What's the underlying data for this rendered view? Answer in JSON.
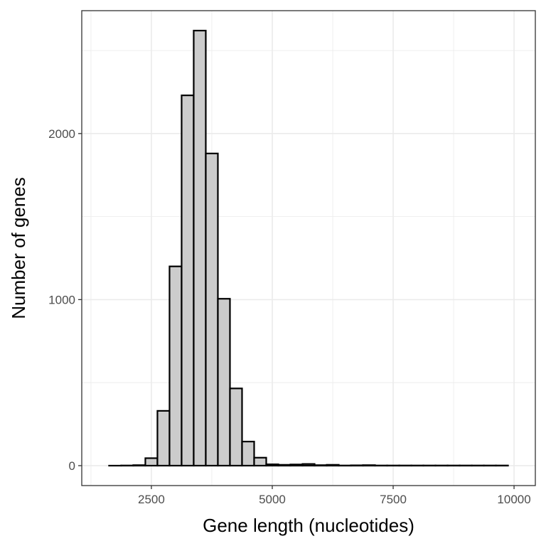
{
  "chart_data": {
    "type": "bar",
    "xlabel": "Gene length (nucleotides)",
    "ylabel": "Number of genes",
    "xlim": [
      1060,
      10440
    ],
    "ylim": [
      -120,
      2740
    ],
    "grid": true,
    "x_ticks": [
      2500,
      5000,
      7500,
      10000
    ],
    "x_tick_labels": [
      "2500",
      "5000",
      "7500",
      "10000"
    ],
    "y_ticks": [
      0,
      1000,
      2000
    ],
    "y_tick_labels": [
      "0",
      "1000",
      "2000"
    ],
    "bin_width": 250,
    "bins": [
      {
        "x": 1750,
        "count": 0
      },
      {
        "x": 2000,
        "count": 1
      },
      {
        "x": 2250,
        "count": 3
      },
      {
        "x": 2500,
        "count": 45
      },
      {
        "x": 2750,
        "count": 330
      },
      {
        "x": 3000,
        "count": 1200
      },
      {
        "x": 3250,
        "count": 2230
      },
      {
        "x": 3500,
        "count": 2620
      },
      {
        "x": 3750,
        "count": 1880
      },
      {
        "x": 4000,
        "count": 1005
      },
      {
        "x": 4250,
        "count": 465
      },
      {
        "x": 4500,
        "count": 145
      },
      {
        "x": 4750,
        "count": 48
      },
      {
        "x": 5000,
        "count": 8
      },
      {
        "x": 5250,
        "count": 5
      },
      {
        "x": 5500,
        "count": 7
      },
      {
        "x": 5750,
        "count": 10
      },
      {
        "x": 6000,
        "count": 3
      },
      {
        "x": 6250,
        "count": 5
      },
      {
        "x": 6500,
        "count": 1
      },
      {
        "x": 6750,
        "count": 2
      },
      {
        "x": 7000,
        "count": 3
      },
      {
        "x": 7250,
        "count": 1
      },
      {
        "x": 7500,
        "count": 1
      },
      {
        "x": 7750,
        "count": 1
      },
      {
        "x": 8000,
        "count": 1
      },
      {
        "x": 8250,
        "count": 1
      },
      {
        "x": 8500,
        "count": 1
      },
      {
        "x": 8750,
        "count": 1
      },
      {
        "x": 9000,
        "count": 1
      },
      {
        "x": 9250,
        "count": 1
      },
      {
        "x": 9500,
        "count": 1
      },
      {
        "x": 9750,
        "count": 1
      }
    ],
    "bar_fill": "#cccccc",
    "bar_stroke": "#000000",
    "grid_color": "#ebebeb"
  }
}
